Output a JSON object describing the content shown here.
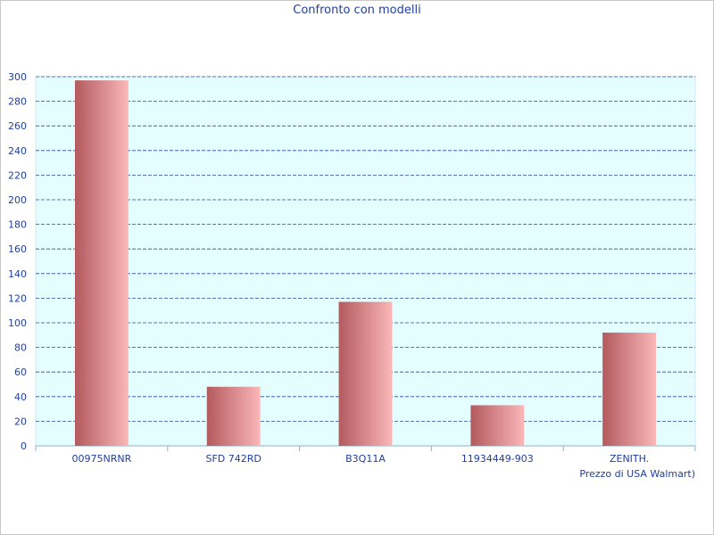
{
  "chart_data": {
    "type": "bar",
    "title": "Confronto con modelli",
    "xlabel": "",
    "ylabel": "",
    "categories": [
      "00975NRNR",
      "SFD 742RD",
      "B3Q11A",
      "11934449-903",
      "ZENITH."
    ],
    "series": [
      {
        "values": [
          297,
          48,
          117,
          33,
          92
        ]
      }
    ],
    "annotation": "Prezzo di USA Walmart)",
    "ylim": [
      0,
      300
    ],
    "yticks": [
      0,
      20,
      40,
      60,
      80,
      100,
      120,
      140,
      160,
      180,
      200,
      220,
      240,
      260,
      280,
      300
    ],
    "grid": true,
    "colors": {
      "plot_background": "#e4fdfe",
      "grid": "#2a4a9a",
      "bar_dark": "#b35a5e",
      "bar_light": "#fbb7b8",
      "text": "#1f3f9f"
    }
  }
}
